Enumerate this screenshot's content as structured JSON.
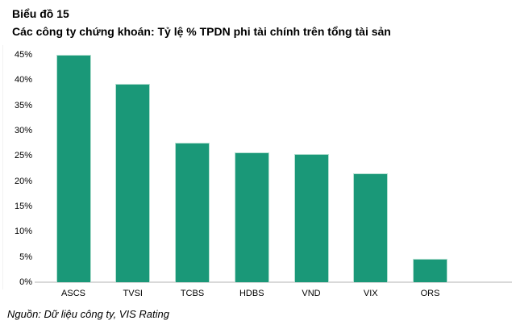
{
  "header": {
    "title": "Biểu đồ 15",
    "subtitle": "Các công ty chứng khoán: Tỷ lệ % TPDN phi tài chính trên tổng tài sản"
  },
  "footer": {
    "source": "Nguồn: Dữ liệu công ty, VIS Rating"
  },
  "colors": {
    "bar": "#1A9878",
    "bar_border": "#B5E0D2",
    "axis_line": "#D9D9D9",
    "text": "#000000"
  },
  "chart_data": {
    "type": "bar",
    "title": "Các công ty chứng khoán: Tỷ lệ % TPDN phi tài chính trên tổng tài sản",
    "categories": [
      "ASCS",
      "TVSI",
      "TCBS",
      "HDBS",
      "VND",
      "VIX",
      "ORS"
    ],
    "values": [
      45,
      39.2,
      27.6,
      25.7,
      25.3,
      21.5,
      4.7
    ],
    "xlabel": "",
    "ylabel": "",
    "ylim": [
      0,
      45
    ],
    "ytick_values": [
      0,
      5,
      10,
      15,
      20,
      25,
      30,
      35,
      40,
      45
    ],
    "ytick_labels": [
      "0%",
      "5%",
      "10%",
      "15%",
      "20%",
      "25%",
      "30%",
      "35%",
      "40%",
      "45%"
    ],
    "grid": false,
    "legend": "none"
  }
}
